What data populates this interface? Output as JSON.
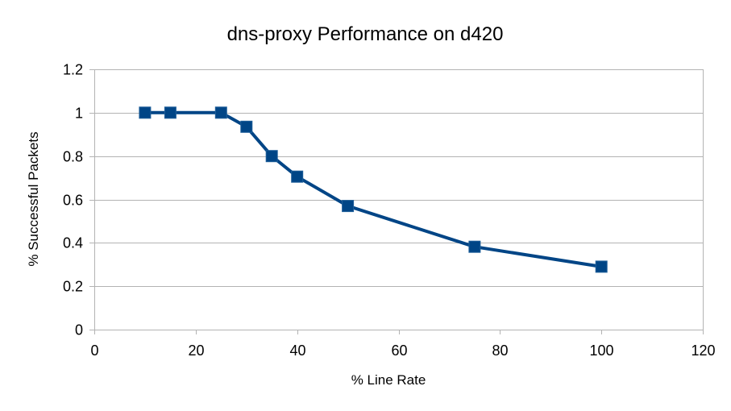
{
  "chart_data": {
    "type": "line",
    "title": "dns-proxy Performance on d420",
    "xlabel": "% Line Rate",
    "ylabel": "% Successful Packets",
    "xlim": [
      0,
      120
    ],
    "ylim": [
      0,
      1.2
    ],
    "xticks": [
      0,
      20,
      40,
      60,
      80,
      100,
      120
    ],
    "yticks": [
      0,
      0.2,
      0.4,
      0.6,
      0.8,
      1,
      1.2
    ],
    "grid": true,
    "series": [
      {
        "color": "#004586",
        "marker": "square",
        "x": [
          10,
          15,
          25,
          30,
          35,
          40,
          50,
          75,
          100
        ],
        "y": [
          1,
          1,
          1,
          0.935,
          0.8,
          0.705,
          0.57,
          0.382,
          0.29
        ]
      }
    ]
  }
}
